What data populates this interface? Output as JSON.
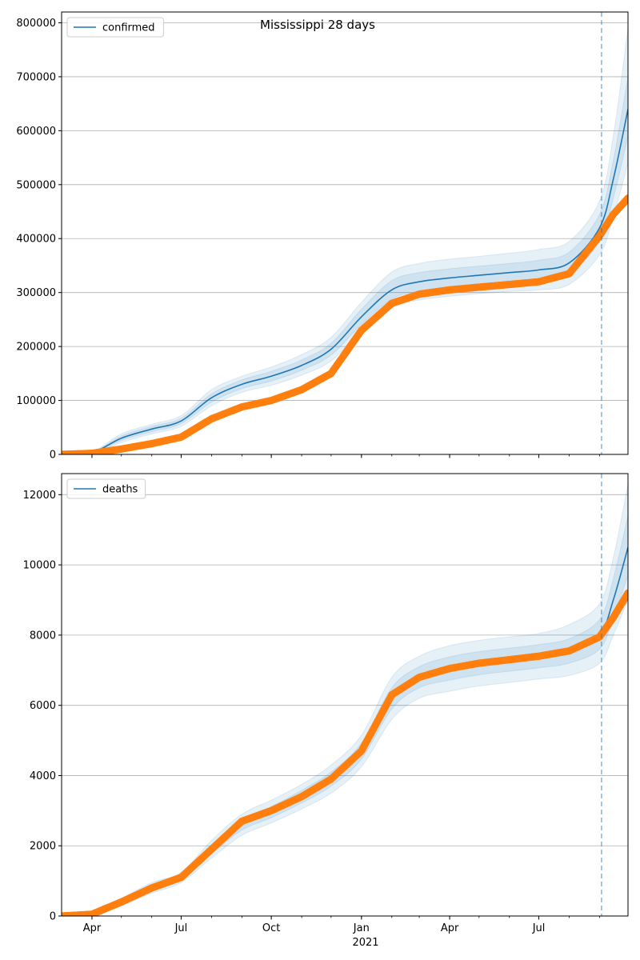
{
  "chart_data": [
    {
      "type": "line",
      "title": "Mississippi 28 days",
      "legend": {
        "placement": "top-left",
        "entries": [
          "confirmed"
        ]
      },
      "grid": "y",
      "xlim": [
        "2020-03-01",
        "2021-09-30"
      ],
      "ylim": [
        0,
        820000
      ],
      "yticks": [
        0,
        100000,
        200000,
        300000,
        400000,
        500000,
        600000,
        700000,
        800000
      ],
      "xticks": [
        {
          "date": "2020-04-01",
          "label": "Apr"
        },
        {
          "date": "2020-07-01",
          "label": "Jul"
        },
        {
          "date": "2020-10-01",
          "label": "Oct"
        },
        {
          "date": "2021-01-01",
          "label": "Jan"
        },
        {
          "date": "2021-04-01",
          "label": "Apr"
        },
        {
          "date": "2021-07-01",
          "label": "Jul"
        }
      ],
      "forecast_start": "2021-09-03",
      "series": [
        {
          "name": "confirmed",
          "kind": "model",
          "color": "#1f77b4",
          "x": [
            "2020-03-01",
            "2020-04-01",
            "2020-05-01",
            "2020-06-01",
            "2020-07-01",
            "2020-08-01",
            "2020-09-01",
            "2020-10-01",
            "2020-11-01",
            "2020-12-01",
            "2021-01-01",
            "2021-02-01",
            "2021-03-01",
            "2021-04-01",
            "2021-05-01",
            "2021-06-01",
            "2021-07-01",
            "2021-08-01",
            "2021-09-01",
            "2021-09-15",
            "2021-09-30"
          ],
          "y": [
            0,
            3000,
            30000,
            47000,
            62000,
            105000,
            130000,
            145000,
            165000,
            195000,
            255000,
            305000,
            320000,
            327000,
            332000,
            337000,
            342000,
            355000,
            420000,
            510000,
            640000
          ],
          "bands": [
            {
              "lower": [
                0,
                1000,
                22000,
                38000,
                52000,
                90000,
                115000,
                128000,
                147000,
                173000,
                228000,
                272000,
                286000,
                293000,
                298000,
                302000,
                305000,
                315000,
                370000,
                440000,
                540000
              ],
              "upper": [
                0,
                5000,
                38000,
                56000,
                72000,
                120000,
                145000,
                162000,
                185000,
                217000,
                282000,
                338000,
                354000,
                362000,
                367000,
                373000,
                380000,
                395000,
                470000,
                590000,
                790000
              ]
            },
            {
              "lower": [
                0,
                2000,
                26000,
                42000,
                57000,
                97000,
                122000,
                136000,
                156000,
                184000,
                241000,
                288000,
                303000,
                310000,
                315000,
                320000,
                324000,
                335000,
                395000,
                475000,
                590000
              ],
              "upper": [
                0,
                4000,
                34000,
                52000,
                67000,
                112000,
                138000,
                154000,
                175000,
                206000,
                269000,
                322000,
                337000,
                344000,
                349000,
                354000,
                360000,
                375000,
                445000,
                545000,
                700000
              ]
            }
          ]
        },
        {
          "name": "",
          "kind": "observed",
          "color": "#ff7f0e",
          "x": [
            "2020-03-01",
            "2020-04-01",
            "2020-05-01",
            "2020-06-01",
            "2020-07-01",
            "2020-08-01",
            "2020-09-01",
            "2020-10-01",
            "2020-11-01",
            "2020-12-01",
            "2021-01-01",
            "2021-02-01",
            "2021-03-01",
            "2021-04-01",
            "2021-05-01",
            "2021-06-01",
            "2021-07-01",
            "2021-08-01",
            "2021-09-01",
            "2021-09-15",
            "2021-09-30"
          ],
          "y": [
            0,
            2000,
            10000,
            20000,
            32000,
            66000,
            88000,
            100000,
            120000,
            150000,
            230000,
            280000,
            297000,
            305000,
            310000,
            315000,
            320000,
            335000,
            405000,
            445000,
            475000
          ]
        }
      ]
    },
    {
      "type": "line",
      "title": "",
      "legend": {
        "placement": "top-left",
        "entries": [
          "deaths"
        ]
      },
      "grid": "y",
      "xlim": [
        "2020-03-01",
        "2021-09-30"
      ],
      "ylim": [
        0,
        12600
      ],
      "yticks": [
        0,
        2000,
        4000,
        6000,
        8000,
        10000,
        12000
      ],
      "xticks": [
        {
          "date": "2020-04-01",
          "label": "Apr"
        },
        {
          "date": "2020-07-01",
          "label": "Jul"
        },
        {
          "date": "2020-10-01",
          "label": "Oct"
        },
        {
          "date": "2021-01-01",
          "label": "Jan"
        },
        {
          "date": "2021-04-01",
          "label": "Apr"
        },
        {
          "date": "2021-07-01",
          "label": "Jul"
        }
      ],
      "xlabel_year": "2021",
      "forecast_start": "2021-09-03",
      "series": [
        {
          "name": "deaths",
          "kind": "model",
          "color": "#1f77b4",
          "x": [
            "2020-03-01",
            "2020-04-01",
            "2020-05-01",
            "2020-06-01",
            "2020-07-01",
            "2020-08-01",
            "2020-09-01",
            "2020-10-01",
            "2020-11-01",
            "2020-12-01",
            "2021-01-01",
            "2021-02-01",
            "2021-03-01",
            "2021-04-01",
            "2021-05-01",
            "2021-06-01",
            "2021-07-01",
            "2021-08-01",
            "2021-09-01",
            "2021-09-15",
            "2021-09-30"
          ],
          "y": [
            0,
            50,
            400,
            800,
            1100,
            1900,
            2600,
            2950,
            3400,
            3900,
            4700,
            6200,
            6800,
            7050,
            7200,
            7300,
            7400,
            7550,
            8000,
            9000,
            10500
          ],
          "bands": [
            {
              "lower": [
                0,
                20,
                300,
                650,
                950,
                1650,
                2300,
                2650,
                3050,
                3500,
                4250,
                5600,
                6200,
                6400,
                6550,
                6650,
                6750,
                6850,
                7200,
                8000,
                9000
              ],
              "upper": [
                0,
                80,
                500,
                950,
                1250,
                2150,
                2900,
                3300,
                3750,
                4300,
                5150,
                6800,
                7400,
                7700,
                7850,
                7950,
                8050,
                8300,
                8900,
                10200,
                12300
              ]
            },
            {
              "lower": [
                0,
                30,
                350,
                720,
                1020,
                1770,
                2450,
                2800,
                3220,
                3700,
                4470,
                5900,
                6500,
                6720,
                6870,
                6970,
                7070,
                7200,
                7600,
                8500,
                9700
              ],
              "upper": [
                0,
                70,
                450,
                880,
                1180,
                2030,
                2750,
                3120,
                3580,
                4100,
                4930,
                6500,
                7100,
                7380,
                7530,
                7630,
                7730,
                7900,
                8450,
                9600,
                11400
              ]
            }
          ]
        },
        {
          "name": "",
          "kind": "observed",
          "color": "#ff7f0e",
          "x": [
            "2020-03-01",
            "2020-04-01",
            "2020-05-01",
            "2020-06-01",
            "2020-07-01",
            "2020-08-01",
            "2020-09-01",
            "2020-10-01",
            "2020-11-01",
            "2020-12-01",
            "2021-01-01",
            "2021-02-01",
            "2021-03-01",
            "2021-04-01",
            "2021-05-01",
            "2021-06-01",
            "2021-07-01",
            "2021-08-01",
            "2021-09-01",
            "2021-09-15",
            "2021-09-30"
          ],
          "y": [
            0,
            50,
            400,
            800,
            1100,
            1900,
            2700,
            3000,
            3400,
            3900,
            4700,
            6300,
            6800,
            7050,
            7200,
            7300,
            7400,
            7550,
            7950,
            8500,
            9200
          ]
        }
      ]
    }
  ]
}
